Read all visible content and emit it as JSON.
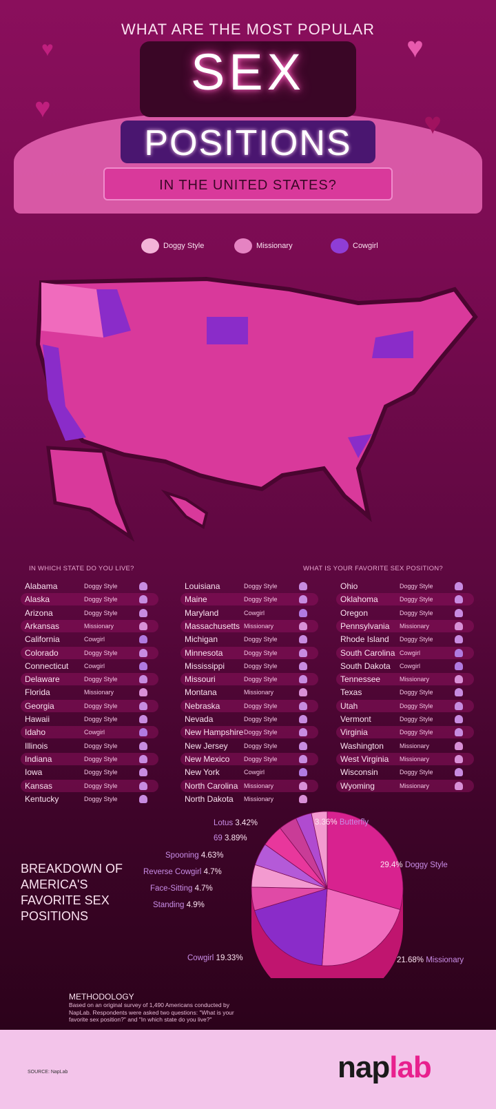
{
  "header": {
    "question": "WHAT ARE THE MOST POPULAR",
    "title_1": "SEX",
    "title_2": "POSITIONS",
    "subtitle": "IN THE UNITED STATES?"
  },
  "legend": [
    {
      "label": "Doggy Style",
      "color": "#f3b3d8"
    },
    {
      "label": "Missionary",
      "color": "#e583c2"
    },
    {
      "label": "Cowgirl",
      "color": "#8f3dd6"
    }
  ],
  "table": {
    "left_header": "IN WHICH STATE DO YOU LIVE?",
    "right_header": "WHAT IS YOUR FAVORITE SEX POSITION?",
    "columns": [
      [
        [
          "Alabama",
          "Doggy Style"
        ],
        [
          "Alaska",
          "Doggy Style"
        ],
        [
          "Arizona",
          "Doggy Style"
        ],
        [
          "Arkansas",
          "Missionary"
        ],
        [
          "California",
          "Cowgirl"
        ],
        [
          "Colorado",
          "Doggy Style"
        ],
        [
          "Connecticut",
          "Cowgirl"
        ],
        [
          "Delaware",
          "Doggy Style"
        ],
        [
          "Florida",
          "Missionary"
        ],
        [
          "Georgia",
          "Doggy Style"
        ],
        [
          "Hawaii",
          "Doggy Style"
        ],
        [
          "Idaho",
          "Cowgirl"
        ],
        [
          "Illinois",
          "Doggy Style"
        ],
        [
          "Indiana",
          "Doggy Style"
        ],
        [
          "Iowa",
          "Doggy Style"
        ],
        [
          "Kansas",
          "Doggy Style"
        ],
        [
          "Kentucky",
          "Doggy Style"
        ]
      ],
      [
        [
          "Louisiana",
          "Doggy Style"
        ],
        [
          "Maine",
          "Doggy Style"
        ],
        [
          "Maryland",
          "Cowgirl"
        ],
        [
          "Massachusetts",
          "Missionary"
        ],
        [
          "Michigan",
          "Doggy Style"
        ],
        [
          "Minnesota",
          "Doggy Style"
        ],
        [
          "Mississippi",
          "Doggy Style"
        ],
        [
          "Missouri",
          "Doggy Style"
        ],
        [
          "Montana",
          "Missionary"
        ],
        [
          "Nebraska",
          "Doggy Style"
        ],
        [
          "Nevada",
          "Doggy Style"
        ],
        [
          "New Hampshire",
          "Doggy Style"
        ],
        [
          "New Jersey",
          "Doggy Style"
        ],
        [
          "New Mexico",
          "Doggy Style"
        ],
        [
          "New York",
          "Cowgirl"
        ],
        [
          "North Carolina",
          "Missionary"
        ],
        [
          "North Dakota",
          "Missionary"
        ]
      ],
      [
        [
          "Ohio",
          "Doggy Style"
        ],
        [
          "Oklahoma",
          "Doggy Style"
        ],
        [
          "Oregon",
          "Doggy Style"
        ],
        [
          "Pennsylvania",
          "Missionary"
        ],
        [
          "Rhode Island",
          "Doggy Style"
        ],
        [
          "South Carolina",
          "Cowgirl"
        ],
        [
          "South Dakota",
          "Cowgirl"
        ],
        [
          "Tennessee",
          "Missionary"
        ],
        [
          "Texas",
          "Doggy Style"
        ],
        [
          "Utah",
          "Doggy Style"
        ],
        [
          "Vermont",
          "Doggy Style"
        ],
        [
          "Virginia",
          "Doggy Style"
        ],
        [
          "Washington",
          "Missionary"
        ],
        [
          "West Virginia",
          "Missionary"
        ],
        [
          "Wisconsin",
          "Doggy Style"
        ],
        [
          "Wyoming",
          "Missionary"
        ]
      ]
    ]
  },
  "breakdown_title": "BREAKDOWN OF AMERICA'S FAVORITE SEX POSITIONS",
  "chart_data": {
    "type": "pie",
    "title": "BREAKDOWN OF AMERICA'S FAVORITE SEX POSITIONS",
    "categories": [
      "Doggy Style",
      "Missionary",
      "Cowgirl",
      "Standing",
      "Face-Sitting",
      "Reverse Cowgirl",
      "Spooning",
      "69",
      "Lotus",
      "Butterfly"
    ],
    "values": [
      29.4,
      21.68,
      19.33,
      4.9,
      4.7,
      4.7,
      4.63,
      3.89,
      3.42,
      3.36
    ],
    "labels": [
      "29.4%",
      "21.68%",
      "19.33%",
      "4.9%",
      "4.7%",
      "4.7%",
      "4.63%",
      "3.89%",
      "3.42%",
      "3.36%"
    ],
    "colors": [
      "#d8228f",
      "#f06bbd",
      "#8a2cc9",
      "#e04aa6",
      "#f39ad0",
      "#b45ad8",
      "#e8379c",
      "#c93c97",
      "#b04bd0",
      "#f39ad0"
    ]
  },
  "methodology": {
    "title": "METHODOLOGY",
    "text": "Based on an original survey of 1,490 Americans conducted by NapLab. Respondents were asked two questions: \"What is your favorite sex position?\" and \"In which state do you live?\""
  },
  "footer": {
    "source": "SOURCE: NapLab",
    "logo_a": "nap",
    "logo_b": "lab"
  }
}
